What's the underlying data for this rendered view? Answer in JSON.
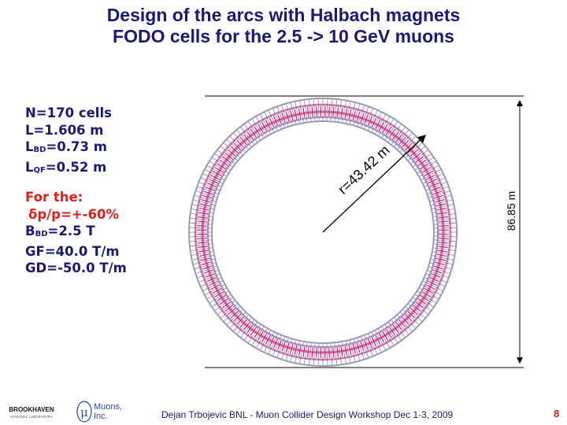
{
  "title": {
    "line1": "Design of the arcs with Halbach magnets",
    "line2": "FODO cells for the 2.5 -> 10 GeV muons"
  },
  "parameters": [
    {
      "text": "N=170 cells"
    },
    {
      "text": "L=1.606 m"
    },
    {
      "symbol": "L",
      "sub": "BD",
      "text": "=0.73 m"
    },
    {
      "symbol": "L",
      "sub": "QF",
      "text": "=0.52 m"
    }
  ],
  "conditions": {
    "heading": "For the:",
    "items": [
      {
        "text": "δp/p=+-60%"
      },
      {
        "symbol": "B",
        "sub": "BD",
        "text": "=2.5 T"
      },
      {
        "text": "GF=40.0 T/m"
      },
      {
        "text": "GD=-50.0 T/m"
      }
    ]
  },
  "diagram": {
    "radius_label": "r=43.42 m",
    "diameter_label": "86.85 m"
  },
  "footer": {
    "credit": "Dejan Trbojevic  BNL - Muon Collider Design Workshop Dec 1-3, 2009",
    "page": "8"
  },
  "logos": {
    "bnl": {
      "name": "BROOKHAVEN",
      "subtitle": "NATIONAL LABORATORY"
    },
    "muons": {
      "symbol": "μ",
      "name": "Muons,",
      "name2": "Inc."
    }
  }
}
